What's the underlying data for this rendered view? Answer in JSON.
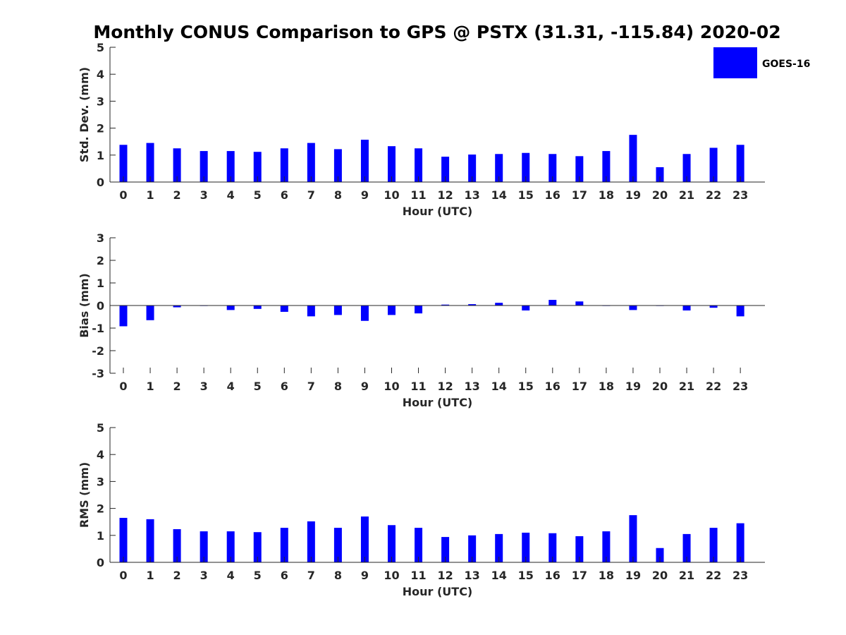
{
  "figure": {
    "title": "Monthly CONUS Comparison to GPS @ PSTX (31.31, -115.84) 2020-02",
    "legend_label": "GOES-16",
    "legend_placement": "top-right",
    "bar_color": "#0000ff"
  },
  "chart_data": [
    {
      "type": "bar",
      "xlabel": "Hour (UTC)",
      "ylabel": "Std. Dev. (mm)",
      "ylim": [
        0,
        5
      ],
      "yticks": [
        "0",
        "1",
        "2",
        "3",
        "4",
        "5"
      ],
      "categories": [
        "0",
        "1",
        "2",
        "3",
        "4",
        "5",
        "6",
        "7",
        "8",
        "9",
        "10",
        "11",
        "12",
        "13",
        "14",
        "15",
        "16",
        "17",
        "18",
        "19",
        "20",
        "21",
        "22",
        "23"
      ],
      "series": [
        {
          "name": "GOES-16",
          "values": [
            1.38,
            1.45,
            1.25,
            1.15,
            1.15,
            1.12,
            1.25,
            1.45,
            1.22,
            1.57,
            1.33,
            1.25,
            0.94,
            1.02,
            1.04,
            1.08,
            1.04,
            0.96,
            1.15,
            1.75,
            0.55,
            1.04,
            1.27,
            1.38
          ]
        }
      ],
      "grid": false
    },
    {
      "type": "bar",
      "xlabel": "Hour (UTC)",
      "ylabel": "Bias (mm)",
      "ylim": [
        -3,
        3
      ],
      "yticks": [
        "-3",
        "-2",
        "-1",
        "0",
        "1",
        "2",
        "3"
      ],
      "categories": [
        "0",
        "1",
        "2",
        "3",
        "4",
        "5",
        "6",
        "7",
        "8",
        "9",
        "10",
        "11",
        "12",
        "13",
        "14",
        "15",
        "16",
        "17",
        "18",
        "19",
        "20",
        "21",
        "22",
        "23"
      ],
      "series": [
        {
          "name": "GOES-16",
          "values": [
            -0.92,
            -0.65,
            -0.08,
            -0.02,
            -0.2,
            -0.15,
            -0.28,
            -0.48,
            -0.42,
            -0.68,
            -0.42,
            -0.35,
            0.04,
            0.06,
            0.12,
            -0.22,
            0.25,
            0.18,
            -0.02,
            -0.2,
            -0.02,
            -0.22,
            -0.1,
            -0.48
          ]
        }
      ],
      "grid": false
    },
    {
      "type": "bar",
      "xlabel": "Hour (UTC)",
      "ylabel": "RMS (mm)",
      "ylim": [
        0,
        5
      ],
      "yticks": [
        "0",
        "1",
        "2",
        "3",
        "4",
        "5"
      ],
      "categories": [
        "0",
        "1",
        "2",
        "3",
        "4",
        "5",
        "6",
        "7",
        "8",
        "9",
        "10",
        "11",
        "12",
        "13",
        "14",
        "15",
        "16",
        "17",
        "18",
        "19",
        "20",
        "21",
        "22",
        "23"
      ],
      "series": [
        {
          "name": "GOES-16",
          "values": [
            1.65,
            1.6,
            1.23,
            1.15,
            1.15,
            1.12,
            1.28,
            1.52,
            1.28,
            1.7,
            1.38,
            1.28,
            0.94,
            1.0,
            1.05,
            1.1,
            1.08,
            0.97,
            1.15,
            1.75,
            0.53,
            1.05,
            1.28,
            1.45
          ]
        }
      ],
      "grid": false
    }
  ]
}
